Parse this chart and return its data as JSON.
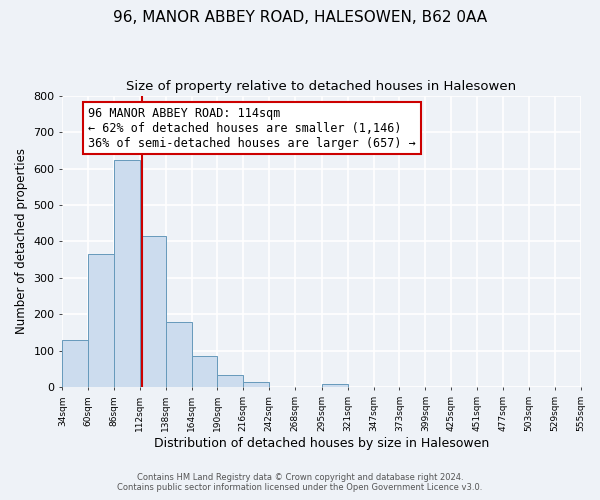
{
  "title": "96, MANOR ABBEY ROAD, HALESOWEN, B62 0AA",
  "subtitle": "Size of property relative to detached houses in Halesowen",
  "xlabel": "Distribution of detached houses by size in Halesowen",
  "ylabel": "Number of detached properties",
  "bar_edges": [
    34,
    60,
    86,
    112,
    138,
    164,
    190,
    216,
    242,
    268,
    295,
    321,
    347,
    373,
    399,
    425,
    451,
    477,
    503,
    529,
    555
  ],
  "bar_heights": [
    130,
    365,
    623,
    415,
    180,
    85,
    35,
    15,
    0,
    0,
    10,
    0,
    0,
    0,
    0,
    0,
    0,
    0,
    0,
    0
  ],
  "property_line_x": 114,
  "annotation_text": "96 MANOR ABBEY ROAD: 114sqm\n← 62% of detached houses are smaller (1,146)\n36% of semi-detached houses are larger (657) →",
  "annotation_box_color": "#ffffff",
  "annotation_border_color": "#cc0000",
  "bar_color": "#ccdcee",
  "bar_edge_color": "#6699bb",
  "vline_color": "#cc0000",
  "ylim": [
    0,
    800
  ],
  "yticks": [
    0,
    100,
    200,
    300,
    400,
    500,
    600,
    700,
    800
  ],
  "tick_labels": [
    "34sqm",
    "60sqm",
    "86sqm",
    "112sqm",
    "138sqm",
    "164sqm",
    "190sqm",
    "216sqm",
    "242sqm",
    "268sqm",
    "295sqm",
    "321sqm",
    "347sqm",
    "373sqm",
    "399sqm",
    "425sqm",
    "451sqm",
    "477sqm",
    "503sqm",
    "529sqm",
    "555sqm"
  ],
  "footer_line1": "Contains HM Land Registry data © Crown copyright and database right 2024.",
  "footer_line2": "Contains public sector information licensed under the Open Government Licence v3.0.",
  "background_color": "#eef2f7",
  "plot_bg_color": "#eef2f7",
  "grid_color": "#ffffff",
  "title_fontsize": 11,
  "subtitle_fontsize": 9.5,
  "xlabel_fontsize": 9,
  "ylabel_fontsize": 8.5,
  "annotation_fontsize": 8.5
}
